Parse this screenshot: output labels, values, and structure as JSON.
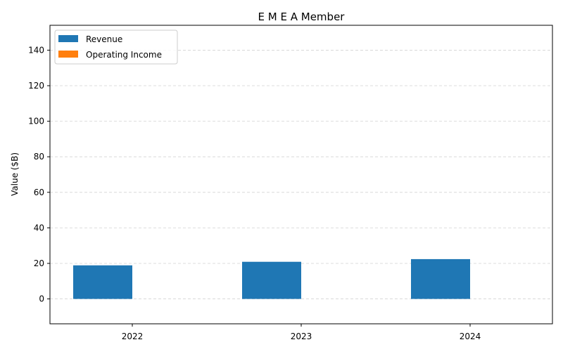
{
  "chart_data": {
    "type": "bar",
    "title": "E M E A Member",
    "xlabel": "",
    "ylabel": "Value ($B)",
    "categories": [
      "2022",
      "2023",
      "2024"
    ],
    "series": [
      {
        "name": "Revenue",
        "values": [
          18.9,
          20.9,
          22.4
        ],
        "color": "#1f77b4"
      },
      {
        "name": "Operating Income",
        "values": [
          0,
          0,
          0
        ],
        "color": "#ff7f0e"
      }
    ],
    "ylim": [
      -14,
      154
    ],
    "yticks": [
      "0",
      "20",
      "40",
      "60",
      "80",
      "100",
      "120",
      "140"
    ],
    "grid": {
      "y": true,
      "style": "dashed"
    },
    "legend": {
      "placement": "upper-left"
    }
  }
}
